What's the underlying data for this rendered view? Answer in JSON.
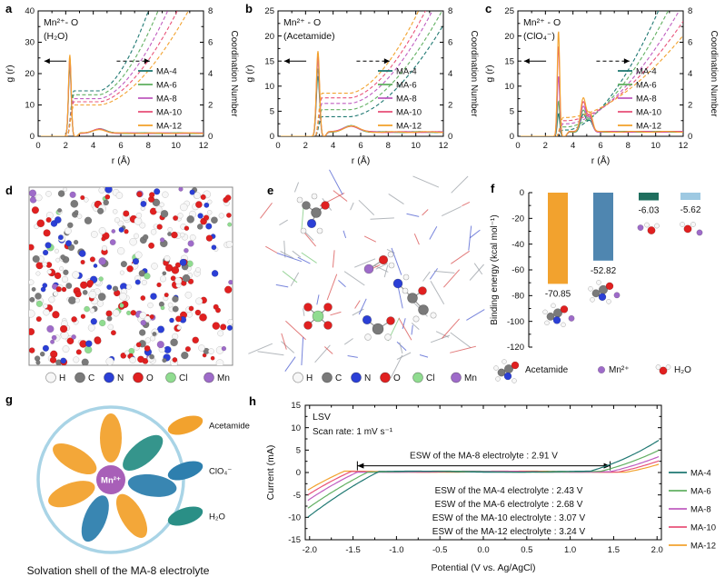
{
  "figure": {
    "panel_labels": {
      "a": "a",
      "b": "b",
      "c": "c",
      "d": "d",
      "e": "e",
      "f": "f",
      "g": "g",
      "h": "h"
    }
  },
  "series_colors": {
    "MA-4": "#1f7872",
    "MA-6": "#63b063",
    "MA-8": "#c05ec0",
    "MA-10": "#e8537a",
    "MA-12": "#f2a22e"
  },
  "atom_legend": [
    {
      "label": "H",
      "color": "#f7f7f7"
    },
    {
      "label": "C",
      "color": "#7a7a7a"
    },
    {
      "label": "N",
      "color": "#2b3fd6"
    },
    {
      "label": "O",
      "color": "#e02020"
    },
    {
      "label": "Cl",
      "color": "#90dc90"
    },
    {
      "label": "Mn",
      "color": "#9e6bc9"
    }
  ],
  "panels": {
    "g": {
      "center": "Mn²⁺",
      "caption": "Solvation shell of the MA-8 electrolyte",
      "ring_color": "#a9d4e6",
      "center_color": "#a85fb8",
      "legend": [
        {
          "label": "Acetamide",
          "color": "#f2a22e"
        },
        {
          "label": "ClO₄⁻",
          "color": "#2e7fae"
        },
        {
          "label": "H₂O",
          "color": "#2a8f86"
        }
      ],
      "petals": [
        {
          "angle": 90,
          "color": "#f2a22e"
        },
        {
          "angle": 40,
          "color": "#2a8f86"
        },
        {
          "angle": -8,
          "color": "#2e7fae"
        },
        {
          "angle": -60,
          "color": "#f2a22e"
        },
        {
          "angle": -112,
          "color": "#2e7fae"
        },
        {
          "angle": -160,
          "color": "#f2a22e"
        },
        {
          "angle": 150,
          "color": "#f2a22e"
        }
      ]
    }
  },
  "chart_data": [
    {
      "id": "a",
      "type": "line",
      "title_lines": [
        "Mn²⁺- O",
        "(H₂O)"
      ],
      "xlabel": "r (Å)",
      "ylabel": "g (r)",
      "ylabel_right": "Coordination Number",
      "x_range": [
        0,
        12
      ],
      "x_ticks": [
        0,
        2,
        4,
        6,
        8,
        10,
        12
      ],
      "y_range": [
        0,
        40
      ],
      "y_ticks": [
        0,
        10,
        20,
        30,
        40
      ],
      "y2_range": [
        0,
        8
      ],
      "y2_ticks": [
        0,
        2,
        4,
        6,
        8
      ],
      "legend": [
        "MA-4",
        "MA-6",
        "MA-8",
        "MA-10",
        "MA-12"
      ],
      "series": [
        {
          "name": "MA-4",
          "peaks": [
            [
              2.3,
              22,
              0.1
            ],
            [
              4.45,
              1.4,
              0.45
            ]
          ],
          "tail": 1.0,
          "cn": {
            "start": 2.3,
            "plateau": 2.9,
            "rise": 4.4,
            "reach_top": 8.0
          }
        },
        {
          "name": "MA-6",
          "peaks": [
            [
              2.3,
              23,
              0.1
            ],
            [
              4.45,
              1.4,
              0.45
            ]
          ],
          "tail": 1.0,
          "cn": {
            "start": 2.3,
            "plateau": 2.65,
            "rise": 4.4,
            "reach_top": 8.7
          }
        },
        {
          "name": "MA-8",
          "peaks": [
            [
              2.3,
              24,
              0.1
            ],
            [
              4.45,
              1.3,
              0.45
            ]
          ],
          "tail": 1.0,
          "cn": {
            "start": 2.3,
            "plateau": 2.4,
            "rise": 4.4,
            "reach_top": 9.4
          }
        },
        {
          "name": "MA-10",
          "peaks": [
            [
              2.3,
              25,
              0.1
            ],
            [
              4.45,
              1.3,
              0.45
            ]
          ],
          "tail": 1.0,
          "cn": {
            "start": 2.3,
            "plateau": 2.2,
            "rise": 4.4,
            "reach_top": 10.1
          }
        },
        {
          "name": "MA-12",
          "peaks": [
            [
              2.3,
              26,
              0.1
            ],
            [
              4.45,
              1.2,
              0.45
            ]
          ],
          "tail": 1.0,
          "cn": {
            "start": 2.3,
            "plateau": 2.0,
            "rise": 4.4,
            "reach_top": 10.9
          }
        }
      ]
    },
    {
      "id": "b",
      "type": "line",
      "title_lines": [
        "Mn²⁺ - O",
        "(Acetamide)"
      ],
      "xlabel": "r (Å)",
      "ylabel": "g (r)",
      "ylabel_right": "Coordination Number",
      "x_range": [
        0,
        12
      ],
      "x_ticks": [
        0,
        2,
        4,
        6,
        8,
        10,
        12
      ],
      "y_range": [
        0,
        25
      ],
      "y_ticks": [
        0,
        5,
        10,
        15,
        20,
        25
      ],
      "y2_range": [
        0,
        8
      ],
      "y2_ticks": [
        0,
        2,
        4,
        6,
        8
      ],
      "legend": [
        "MA-4",
        "MA-6",
        "MA-8",
        "MA-10",
        "MA-12"
      ],
      "series": [
        {
          "name": "MA-4",
          "peaks": [
            [
              2.9,
              12,
              0.12
            ],
            [
              5.3,
              1.2,
              0.55
            ]
          ],
          "tail": 0.85,
          "cn": {
            "start": 2.9,
            "plateau": 1.25,
            "rise": 5.2,
            "reach_top": 12.6
          }
        },
        {
          "name": "MA-6",
          "peaks": [
            [
              2.9,
              13.5,
              0.12
            ],
            [
              5.3,
              1.2,
              0.55
            ]
          ],
          "tail": 0.85,
          "cn": {
            "start": 2.9,
            "plateau": 1.7,
            "rise": 5.2,
            "reach_top": 11.9
          }
        },
        {
          "name": "MA-8",
          "peaks": [
            [
              2.9,
              15,
              0.12
            ],
            [
              5.3,
              1.2,
              0.55
            ]
          ],
          "tail": 0.85,
          "cn": {
            "start": 2.9,
            "plateau": 2.1,
            "rise": 5.2,
            "reach_top": 11.2
          }
        },
        {
          "name": "MA-10",
          "peaks": [
            [
              2.9,
              16,
              0.12
            ],
            [
              5.3,
              1.2,
              0.55
            ]
          ],
          "tail": 0.85,
          "cn": {
            "start": 2.9,
            "plateau": 2.45,
            "rise": 5.2,
            "reach_top": 10.7
          }
        },
        {
          "name": "MA-12",
          "peaks": [
            [
              2.9,
              17,
              0.12
            ],
            [
              5.3,
              1.2,
              0.55
            ]
          ],
          "tail": 0.85,
          "cn": {
            "start": 2.9,
            "plateau": 2.75,
            "rise": 5.2,
            "reach_top": 10.2
          }
        }
      ]
    },
    {
      "id": "c",
      "type": "line",
      "title_lines": [
        "Mn²⁺ - O",
        "(ClO₄⁻)"
      ],
      "xlabel": "r (Å)",
      "ylabel": "g (r)",
      "ylabel_right": "Coordination Number",
      "x_range": [
        0,
        12
      ],
      "x_ticks": [
        0,
        2,
        4,
        6,
        8,
        10,
        12
      ],
      "y_range": [
        0,
        25
      ],
      "y_ticks": [
        0,
        5,
        10,
        15,
        20,
        25
      ],
      "y2_range": [
        0,
        8
      ],
      "y2_ticks": [
        0,
        2,
        4,
        6,
        8
      ],
      "legend": [
        "MA-4",
        "MA-6",
        "MA-8",
        "MA-10",
        "MA-12"
      ],
      "series": [
        {
          "name": "MA-4",
          "peaks": [
            [
              2.95,
              4.5,
              0.09
            ],
            [
              4.75,
              3.5,
              0.2
            ],
            [
              5.25,
              2.0,
              0.18
            ]
          ],
          "tail": 0.9,
          "cn": {
            "start": 3.0,
            "plateau": 0.4,
            "rise": 3.6,
            "reach_top": 10.2
          }
        },
        {
          "name": "MA-6",
          "peaks": [
            [
              2.95,
              7,
              0.09
            ],
            [
              4.75,
              4.2,
              0.2
            ],
            [
              5.25,
              2.4,
              0.18
            ]
          ],
          "tail": 0.9,
          "cn": {
            "start": 3.0,
            "plateau": 0.6,
            "rise": 3.6,
            "reach_top": 10.9
          }
        },
        {
          "name": "MA-8",
          "peaks": [
            [
              2.95,
              12,
              0.09
            ],
            [
              4.75,
              5.0,
              0.2
            ],
            [
              5.25,
              2.8,
              0.18
            ]
          ],
          "tail": 0.9,
          "cn": {
            "start": 3.0,
            "plateau": 0.8,
            "rise": 3.6,
            "reach_top": 11.7
          }
        },
        {
          "name": "MA-10",
          "peaks": [
            [
              2.95,
              18,
              0.09
            ],
            [
              4.75,
              6.0,
              0.2
            ],
            [
              5.25,
              3.2,
              0.18
            ]
          ],
          "tail": 0.9,
          "cn": {
            "start": 3.0,
            "plateau": 1.0,
            "rise": 3.6,
            "reach_top": 12.5
          }
        },
        {
          "name": "MA-12",
          "peaks": [
            [
              2.95,
              21,
              0.09
            ],
            [
              4.75,
              6.8,
              0.2
            ],
            [
              5.25,
              3.6,
              0.18
            ]
          ],
          "tail": 0.9,
          "cn": {
            "start": 3.0,
            "plateau": 1.2,
            "rise": 3.6,
            "reach_top": 13.4
          }
        }
      ]
    },
    {
      "id": "f",
      "type": "bar",
      "ylabel": "Binding energy (kcal mol⁻¹)",
      "y_range": [
        -120,
        0
      ],
      "y_ticks": [
        0,
        -20,
        -40,
        -60,
        -80,
        -100,
        -120
      ],
      "bars": [
        {
          "value": -70.85,
          "label": "-70.85",
          "color": "#f2a22e",
          "icon": "acetamide-mn"
        },
        {
          "value": -52.82,
          "label": "-52.82",
          "color": "#4f86b0",
          "icon": "acetamide-mn"
        },
        {
          "value": -6.03,
          "label": "-6.03",
          "color": "#1f6e5e",
          "icon": "mn-h2o"
        },
        {
          "value": -5.62,
          "label": "-5.62",
          "color": "#9ec9e2",
          "icon": "h2o-mn"
        }
      ],
      "legend": [
        {
          "label": "Acetamide",
          "icon": "acetamide"
        },
        {
          "label": "Mn²⁺",
          "icon": "mn"
        },
        {
          "label": "H₂O",
          "icon": "h2o"
        }
      ]
    },
    {
      "id": "h",
      "type": "line",
      "title": "LSV",
      "subtitle": "Scan rate: 1 mV s⁻¹",
      "xlabel": "Potential (V vs. Ag/AgCl)",
      "ylabel": "Current (mA)",
      "x_range": [
        -2.05,
        2.05
      ],
      "x_ticks": [
        -2.0,
        -1.5,
        -1.0,
        -0.5,
        0.0,
        0.5,
        1.0,
        1.5,
        2.0
      ],
      "x_tick_labels": [
        "-2.0",
        "-1.5",
        "-1.0",
        "-0.5",
        "0.0",
        "0.5",
        "1.0",
        "1.5",
        "2.0"
      ],
      "y_range": [
        -15,
        15
      ],
      "y_ticks": [
        -15,
        -10,
        -5,
        0,
        5,
        10,
        15
      ],
      "esw_arrow": {
        "text": "ESW of the MA-8 electrolyte : 2.91 V",
        "x_from": -1.45,
        "x_to": 1.46,
        "y": 1.5
      },
      "esw_notes": [
        "ESW of the MA-4 electrolyte : 2.43 V",
        "ESW of the MA-6 electrolyte : 2.68 V",
        "ESW of the MA-10 electrolyte : 3.07 V",
        "ESW of the MA-12 electrolyte : 3.24 V"
      ],
      "legend": [
        "MA-4",
        "MA-6",
        "MA-8",
        "MA-10",
        "MA-12"
      ],
      "series": [
        {
          "name": "MA-4",
          "esw_v": 2.43,
          "neg_onset": -1.2,
          "pos_onset": 1.23,
          "neg_slope": 9.5,
          "pos_slope": 5.5
        },
        {
          "name": "MA-6",
          "esw_v": 2.68,
          "neg_onset": -1.33,
          "pos_onset": 1.35,
          "neg_slope": 9.5,
          "pos_slope": 4.6
        },
        {
          "name": "MA-8",
          "esw_v": 2.91,
          "neg_onset": -1.45,
          "pos_onset": 1.46,
          "neg_slope": 9.5,
          "pos_slope": 4.0
        },
        {
          "name": "MA-10",
          "esw_v": 3.07,
          "neg_onset": -1.52,
          "pos_onset": 1.55,
          "neg_slope": 9.0,
          "pos_slope": 3.6
        },
        {
          "name": "MA-12",
          "esw_v": 3.24,
          "neg_onset": -1.6,
          "pos_onset": 1.64,
          "neg_slope": 8.5,
          "pos_slope": 3.4
        }
      ]
    }
  ]
}
